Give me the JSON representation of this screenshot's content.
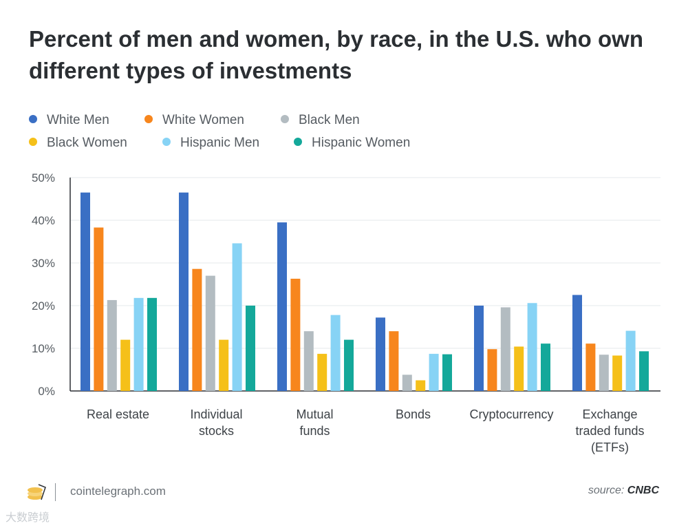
{
  "chart_data": {
    "type": "bar",
    "title": "Percent of men and women, by race, in the U.S. who own different types of investments",
    "xlabel": "",
    "ylabel": "",
    "ylim": [
      0,
      50
    ],
    "yticks": [
      "0%",
      "10%",
      "20%",
      "30%",
      "40%",
      "50%"
    ],
    "grid": true,
    "legend_position": "top-left",
    "categories": [
      [
        "Real estate"
      ],
      [
        "Individual",
        "stocks"
      ],
      [
        "Mutual",
        "funds"
      ],
      [
        "Bonds"
      ],
      [
        "Cryptocurrency"
      ],
      [
        "Exchange",
        "traded funds",
        "(ETFs)"
      ]
    ],
    "series": [
      {
        "name": "White Men",
        "color": "#3a6fc4",
        "values": [
          46.5,
          46.5,
          39.5,
          17.2,
          20,
          22.5
        ]
      },
      {
        "name": "White Women",
        "color": "#f7861d",
        "values": [
          38.3,
          28.6,
          26.3,
          14,
          9.8,
          11.1
        ]
      },
      {
        "name": "Black Men",
        "color": "#b3bcc1",
        "values": [
          21.3,
          27,
          14,
          3.8,
          19.6,
          8.5
        ]
      },
      {
        "name": "Black Women",
        "color": "#f5c019",
        "values": [
          12,
          12,
          8.7,
          2.5,
          10.4,
          8.3
        ]
      },
      {
        "name": "Hispanic Men",
        "color": "#87d3f5",
        "values": [
          21.8,
          34.6,
          17.8,
          8.7,
          20.6,
          14.1
        ]
      },
      {
        "name": "Hispanic Women",
        "color": "#14a89a",
        "values": [
          21.8,
          20,
          12,
          8.6,
          11.1,
          9.3
        ]
      }
    ]
  },
  "footer": {
    "site": "cointelegraph.com",
    "source_label": "source:",
    "source_name": "CNBC"
  },
  "watermark": "大数跨境"
}
